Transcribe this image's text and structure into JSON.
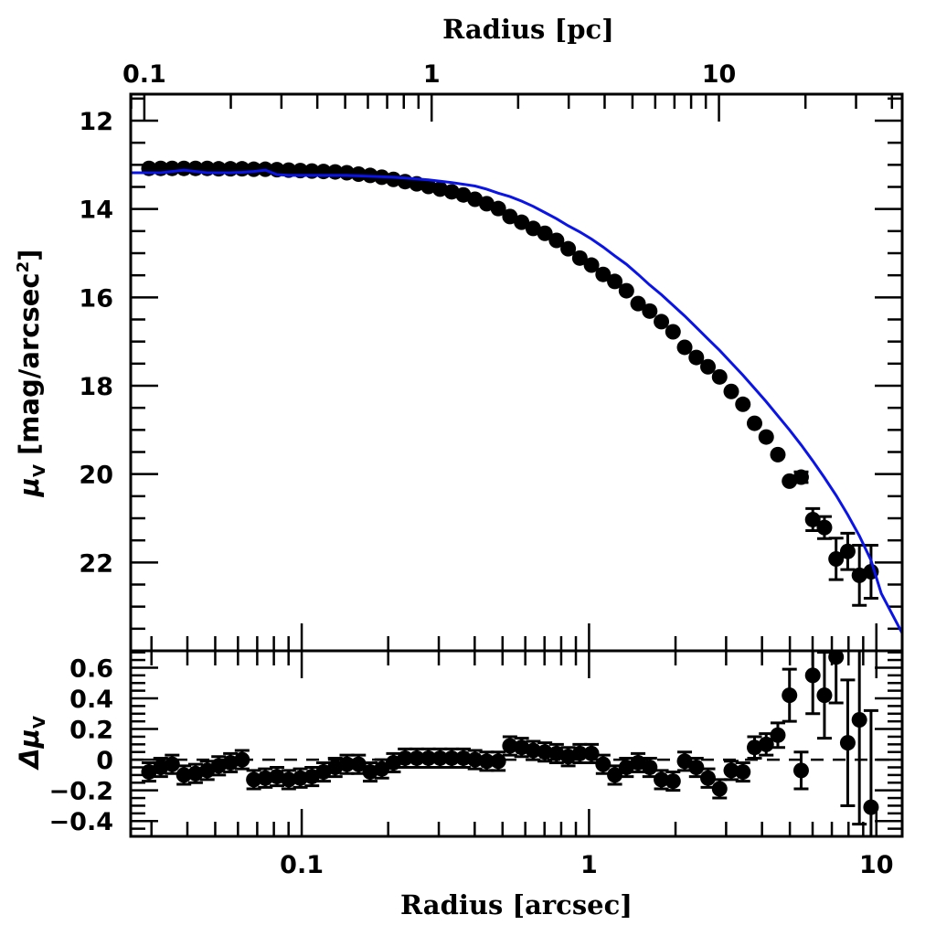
{
  "chart_data": [
    {
      "panel": "profile",
      "type": "scatter",
      "title": "",
      "top_xlabel": "Radius [pc]",
      "top_ticks": [
        "0.1",
        "1",
        "10"
      ],
      "pc_per_arcsec": 3.53,
      "xscale": "log",
      "xlim": [
        0.0254,
        12.3
      ],
      "ylabel_symbol": "μ",
      "ylabel_sub": "V",
      "ylabel_rest": " [mag/arcsec",
      "ylabel_sup": "2",
      "ylabel_close": "]",
      "yticks": [
        "12",
        "14",
        "16",
        "18",
        "20",
        "22"
      ],
      "ylim": [
        24.0,
        11.4
      ],
      "y_inverted": true,
      "grid": false,
      "colors": {
        "points": "#000000",
        "model": "#0a14e6"
      },
      "series": [
        {
          "name": "data",
          "x": [
            0.0294,
            0.0323,
            0.0354,
            0.0389,
            0.0427,
            0.0469,
            0.0514,
            0.0565,
            0.062,
            0.0681,
            0.0747,
            0.082,
            0.0901,
            0.0989,
            0.1085,
            0.1191,
            0.1308,
            0.1436,
            0.1577,
            0.1731,
            0.19,
            0.2086,
            0.229,
            0.2514,
            0.2761,
            0.3031,
            0.3327,
            0.3653,
            0.401,
            0.4403,
            0.4833,
            0.5306,
            0.5825,
            0.6395,
            0.7021,
            0.7708,
            0.8462,
            0.929,
            1.0198,
            1.1196,
            1.2292,
            1.3495,
            1.4815,
            1.6265,
            1.7856,
            1.9603,
            2.1521,
            2.3627,
            2.5939,
            2.8477,
            3.1261,
            3.432,
            3.7679,
            4.1365,
            4.5412,
            4.9855,
            5.4733,
            6.0088,
            6.5967,
            7.2422,
            7.9509,
            8.7288,
            9.5829
          ],
          "y": [
            13.08,
            13.08,
            13.08,
            13.08,
            13.08,
            13.08,
            13.09,
            13.09,
            13.09,
            13.1,
            13.1,
            13.11,
            13.12,
            13.13,
            13.14,
            13.15,
            13.16,
            13.18,
            13.21,
            13.24,
            13.28,
            13.33,
            13.38,
            13.43,
            13.49,
            13.55,
            13.61,
            13.68,
            13.78,
            13.88,
            13.99,
            14.17,
            14.3,
            14.44,
            14.55,
            14.71,
            14.9,
            15.11,
            15.27,
            15.48,
            15.64,
            15.85,
            16.14,
            16.31,
            16.55,
            16.78,
            17.13,
            17.36,
            17.57,
            17.8,
            18.13,
            18.42,
            18.85,
            19.16,
            19.56,
            20.16,
            20.07,
            21.03,
            21.21,
            21.92,
            21.75,
            22.29,
            22.21
          ],
          "yerr": [
            0.03,
            0.03,
            0.03,
            0.03,
            0.03,
            0.03,
            0.03,
            0.03,
            0.03,
            0.03,
            0.03,
            0.03,
            0.03,
            0.03,
            0.03,
            0.03,
            0.03,
            0.03,
            0.03,
            0.03,
            0.03,
            0.03,
            0.03,
            0.03,
            0.03,
            0.03,
            0.03,
            0.03,
            0.03,
            0.03,
            0.03,
            0.03,
            0.03,
            0.03,
            0.03,
            0.03,
            0.03,
            0.03,
            0.03,
            0.03,
            0.03,
            0.03,
            0.03,
            0.03,
            0.03,
            0.03,
            0.03,
            0.03,
            0.03,
            0.04,
            0.04,
            0.05,
            0.06,
            0.07,
            0.08,
            0.1,
            0.12,
            0.25,
            0.25,
            0.47,
            0.41,
            0.68,
            0.6
          ]
        },
        {
          "name": "model",
          "x": [
            0.0254,
            0.0294,
            0.0323,
            0.0354,
            0.0389,
            0.0427,
            0.0469,
            0.0514,
            0.0565,
            0.062,
            0.0681,
            0.0747,
            0.082,
            0.0901,
            0.0989,
            0.1085,
            0.1191,
            0.1308,
            0.1436,
            0.1577,
            0.1731,
            0.19,
            0.2086,
            0.229,
            0.2514,
            0.2761,
            0.3031,
            0.3327,
            0.3653,
            0.401,
            0.4403,
            0.4833,
            0.5306,
            0.5825,
            0.6395,
            0.7021,
            0.7708,
            0.8462,
            0.929,
            1.0198,
            1.1196,
            1.2292,
            1.3495,
            1.4815,
            1.6265,
            1.7856,
            1.9603,
            2.1521,
            2.3627,
            2.5939,
            2.8477,
            3.1261,
            3.432,
            3.7679,
            4.1365,
            4.5412,
            4.9855,
            5.4733,
            6.0088,
            6.5967,
            7.2422,
            7.9509,
            8.7288,
            9.5829,
            10.4,
            12.3
          ],
          "y": [
            13.18,
            13.18,
            13.18,
            13.15,
            13.12,
            13.15,
            13.18,
            13.18,
            13.18,
            13.17,
            13.15,
            13.12,
            13.22,
            13.24,
            13.24,
            13.24,
            13.24,
            13.24,
            13.24,
            13.25,
            13.26,
            13.27,
            13.28,
            13.3,
            13.32,
            13.34,
            13.37,
            13.4,
            13.44,
            13.48,
            13.55,
            13.64,
            13.72,
            13.82,
            13.94,
            14.08,
            14.22,
            14.38,
            14.52,
            14.68,
            14.86,
            15.06,
            15.25,
            15.48,
            15.72,
            15.94,
            16.18,
            16.42,
            16.68,
            16.94,
            17.2,
            17.48,
            17.76,
            18.06,
            18.36,
            18.68,
            19.0,
            19.34,
            19.7,
            20.08,
            20.48,
            20.92,
            21.4,
            21.95,
            22.7,
            23.6
          ]
        }
      ]
    },
    {
      "panel": "residuals",
      "type": "scatter",
      "xlabel": "Radius [arcsec]",
      "xticks": [
        "0.1",
        "1",
        "10"
      ],
      "xscale": "log",
      "xlim": [
        0.0254,
        12.3
      ],
      "ylabel_symbol": "Δμ",
      "ylabel_sub": "V",
      "yticks": [
        "0.6",
        "0.4",
        "0.2",
        "0",
        "−0.2",
        "−0.4"
      ],
      "ylim": [
        -0.5,
        0.71
      ],
      "zero_line": "dashed",
      "grid": false,
      "series": [
        {
          "name": "residuals",
          "x": [
            0.0294,
            0.0323,
            0.0354,
            0.0389,
            0.0427,
            0.0469,
            0.0514,
            0.0565,
            0.062,
            0.0681,
            0.0747,
            0.082,
            0.0901,
            0.0989,
            0.1085,
            0.1191,
            0.1308,
            0.1436,
            0.1577,
            0.1731,
            0.19,
            0.2086,
            0.229,
            0.2514,
            0.2761,
            0.3031,
            0.3327,
            0.3653,
            0.401,
            0.4403,
            0.4833,
            0.5306,
            0.5825,
            0.6395,
            0.7021,
            0.7708,
            0.8462,
            0.929,
            1.0198,
            1.1196,
            1.2292,
            1.3495,
            1.4815,
            1.6265,
            1.7856,
            1.9603,
            2.1521,
            2.3627,
            2.5939,
            2.8477,
            3.1261,
            3.432,
            3.7679,
            4.1365,
            4.5412,
            4.9855,
            5.4733,
            6.0088,
            6.5967,
            7.2422,
            7.9509,
            8.7288,
            9.5829
          ],
          "y": [
            -0.08,
            -0.05,
            -0.03,
            -0.1,
            -0.09,
            -0.07,
            -0.04,
            -0.02,
            0.0,
            -0.13,
            -0.12,
            -0.11,
            -0.13,
            -0.12,
            -0.11,
            -0.08,
            -0.05,
            -0.03,
            -0.03,
            -0.08,
            -0.06,
            -0.02,
            0.01,
            0.01,
            0.01,
            0.01,
            0.01,
            0.01,
            0.0,
            -0.01,
            -0.01,
            0.09,
            0.08,
            0.06,
            0.05,
            0.04,
            0.02,
            0.04,
            0.04,
            -0.03,
            -0.1,
            -0.05,
            -0.02,
            -0.05,
            -0.13,
            -0.14,
            -0.01,
            -0.05,
            -0.12,
            -0.19,
            -0.07,
            -0.08,
            0.08,
            0.1,
            0.16,
            0.42,
            -0.07,
            0.55,
            0.42,
            0.67,
            0.11,
            0.26,
            -0.31
          ],
          "yerr": [
            0.06,
            0.06,
            0.06,
            0.06,
            0.06,
            0.06,
            0.06,
            0.06,
            0.06,
            0.06,
            0.06,
            0.06,
            0.06,
            0.06,
            0.06,
            0.06,
            0.06,
            0.06,
            0.06,
            0.06,
            0.06,
            0.06,
            0.06,
            0.06,
            0.06,
            0.06,
            0.06,
            0.06,
            0.06,
            0.06,
            0.06,
            0.06,
            0.06,
            0.06,
            0.06,
            0.06,
            0.06,
            0.06,
            0.06,
            0.06,
            0.06,
            0.06,
            0.06,
            0.06,
            0.06,
            0.06,
            0.06,
            0.06,
            0.06,
            0.06,
            0.06,
            0.06,
            0.07,
            0.07,
            0.08,
            0.17,
            0.12,
            0.25,
            0.28,
            0.3,
            0.41,
            0.68,
            0.63
          ]
        }
      ]
    }
  ]
}
